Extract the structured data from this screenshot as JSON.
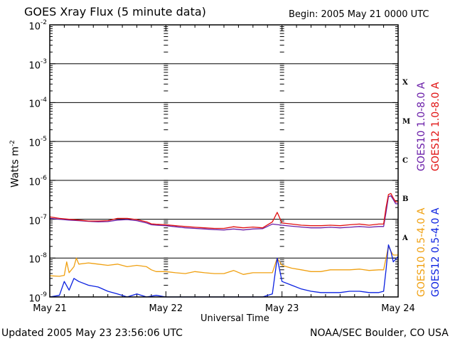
{
  "chart_data": {
    "type": "line",
    "title": "GOES Xray Flux (5 minute data)",
    "begin": "Begin:  2005 May 21 0000 UTC",
    "xlabel": "Universal Time",
    "ylabel": "Watts m",
    "ylabel_exp": "-2",
    "y_scale": "log",
    "ylim": [
      1e-09,
      0.01
    ],
    "x_range_hours": [
      0,
      72
    ],
    "x_tick_labels": [
      "May 21",
      "May 22",
      "May 23",
      "May 24"
    ],
    "y_tick_labels": [
      {
        "base": "10",
        "exp": "-2"
      },
      {
        "base": "10",
        "exp": "-3"
      },
      {
        "base": "10",
        "exp": "-4"
      },
      {
        "base": "10",
        "exp": "-5"
      },
      {
        "base": "10",
        "exp": "-6"
      },
      {
        "base": "10",
        "exp": "-7"
      },
      {
        "base": "10",
        "exp": "-8"
      },
      {
        "base": "10",
        "exp": "-9"
      }
    ],
    "flare_classes": [
      "X",
      "M",
      "C",
      "B",
      "A"
    ],
    "grid": true,
    "series": [
      {
        "name": "GOES10 1.0-8.0 A",
        "color": "#6a1ea8",
        "points": [
          [
            0,
            1.05e-07
          ],
          [
            2,
            1e-07
          ],
          [
            4,
            9.5e-08
          ],
          [
            6,
            9.2e-08
          ],
          [
            8,
            8.8e-08
          ],
          [
            10,
            8.6e-08
          ],
          [
            12,
            8.7e-08
          ],
          [
            14,
            9.5e-08
          ],
          [
            16,
            9.8e-08
          ],
          [
            18,
            9.2e-08
          ],
          [
            20,
            8e-08
          ],
          [
            21,
            7.2e-08
          ],
          [
            22,
            7e-08
          ],
          [
            24,
            6.8e-08
          ],
          [
            26,
            6.4e-08
          ],
          [
            28,
            6e-08
          ],
          [
            30,
            5.8e-08
          ],
          [
            32,
            5.6e-08
          ],
          [
            34,
            5.4e-08
          ],
          [
            36,
            5.3e-08
          ],
          [
            38,
            5.6e-08
          ],
          [
            40,
            5.3e-08
          ],
          [
            42,
            5.6e-08
          ],
          [
            44,
            5.7e-08
          ],
          [
            46,
            7.5e-08
          ],
          [
            48,
            7e-08
          ],
          [
            50,
            6.6e-08
          ],
          [
            52,
            6.3e-08
          ],
          [
            54,
            6e-08
          ],
          [
            56,
            6e-08
          ],
          [
            58,
            6.2e-08
          ],
          [
            60,
            6e-08
          ],
          [
            62,
            6.2e-08
          ],
          [
            64,
            6.5e-08
          ],
          [
            66,
            6.2e-08
          ],
          [
            68,
            6.5e-08
          ],
          [
            69,
            6.5e-08
          ],
          [
            69.5,
            1.5e-07
          ],
          [
            70,
            3.8e-07
          ],
          [
            70.5,
            4e-07
          ],
          [
            71,
            3.2e-07
          ],
          [
            71.5,
            2.5e-07
          ],
          [
            72,
            2.5e-07
          ]
        ]
      },
      {
        "name": "GOES12 1.0-8.0 A",
        "color": "#e01010",
        "points": [
          [
            0,
            1.15e-07
          ],
          [
            2,
            1.05e-07
          ],
          [
            4,
            1e-07
          ],
          [
            6,
            9.5e-08
          ],
          [
            8,
            9e-08
          ],
          [
            10,
            9e-08
          ],
          [
            12,
            9.2e-08
          ],
          [
            14,
            1.05e-07
          ],
          [
            16,
            1.05e-07
          ],
          [
            18,
            9.8e-08
          ],
          [
            20,
            8.6e-08
          ],
          [
            21,
            7.6e-08
          ],
          [
            22,
            7.4e-08
          ],
          [
            24,
            7.2e-08
          ],
          [
            26,
            6.8e-08
          ],
          [
            28,
            6.5e-08
          ],
          [
            30,
            6.2e-08
          ],
          [
            32,
            6e-08
          ],
          [
            34,
            5.8e-08
          ],
          [
            36,
            5.8e-08
          ],
          [
            38,
            6.4e-08
          ],
          [
            40,
            6e-08
          ],
          [
            42,
            6.3e-08
          ],
          [
            44,
            6e-08
          ],
          [
            46,
            8.5e-08
          ],
          [
            47,
            1.5e-07
          ],
          [
            48,
            8e-08
          ],
          [
            50,
            7.5e-08
          ],
          [
            52,
            7e-08
          ],
          [
            54,
            6.8e-08
          ],
          [
            56,
            6.8e-08
          ],
          [
            58,
            7e-08
          ],
          [
            60,
            6.8e-08
          ],
          [
            62,
            7.2e-08
          ],
          [
            64,
            7.5e-08
          ],
          [
            66,
            7e-08
          ],
          [
            68,
            7.5e-08
          ],
          [
            69,
            7.5e-08
          ],
          [
            69.5,
            2e-07
          ],
          [
            70,
            4.3e-07
          ],
          [
            70.5,
            4.6e-07
          ],
          [
            71,
            3.5e-07
          ],
          [
            71.5,
            2.8e-07
          ],
          [
            72,
            2.8e-07
          ]
        ]
      },
      {
        "name": "GOES10 0.5-4.0 A",
        "color": "#f0a010",
        "points": [
          [
            0,
            3.5e-09
          ],
          [
            2,
            3.4e-09
          ],
          [
            3,
            3.6e-09
          ],
          [
            3.5,
            8e-09
          ],
          [
            4,
            4.2e-09
          ],
          [
            5,
            6e-09
          ],
          [
            5.5,
            1e-08
          ],
          [
            6,
            7e-09
          ],
          [
            8,
            7.5e-09
          ],
          [
            10,
            7e-09
          ],
          [
            12,
            6.5e-09
          ],
          [
            14,
            7e-09
          ],
          [
            16,
            6e-09
          ],
          [
            18,
            6.5e-09
          ],
          [
            20,
            6e-09
          ],
          [
            21,
            5e-09
          ],
          [
            22,
            4.5e-09
          ],
          [
            24,
            4.5e-09
          ],
          [
            26,
            4.2e-09
          ],
          [
            28,
            4e-09
          ],
          [
            30,
            4.5e-09
          ],
          [
            32,
            4.2e-09
          ],
          [
            34,
            4e-09
          ],
          [
            36,
            4e-09
          ],
          [
            38,
            4.8e-09
          ],
          [
            40,
            3.8e-09
          ],
          [
            42,
            4.2e-09
          ],
          [
            44,
            4.2e-09
          ],
          [
            46,
            4.2e-09
          ],
          [
            47,
            1e-08
          ],
          [
            48,
            6.5e-09
          ],
          [
            50,
            5.5e-09
          ],
          [
            52,
            5e-09
          ],
          [
            54,
            4.5e-09
          ],
          [
            56,
            4.5e-09
          ],
          [
            58,
            5e-09
          ],
          [
            60,
            5e-09
          ],
          [
            62,
            5e-09
          ],
          [
            64,
            5.2e-09
          ],
          [
            66,
            4.8e-09
          ],
          [
            68,
            5e-09
          ],
          [
            69,
            5e-09
          ],
          [
            69.5,
            1e-08
          ],
          [
            70,
            2e-08
          ],
          [
            70.5,
            1.5e-08
          ],
          [
            71,
            1.2e-08
          ],
          [
            72,
            1.2e-08
          ]
        ]
      },
      {
        "name": "GOES12 0.5-4.0 A",
        "color": "#0a20e0",
        "points": [
          [
            0,
            1e-09
          ],
          [
            2,
            1.1e-09
          ],
          [
            3,
            2.5e-09
          ],
          [
            4,
            1.5e-09
          ],
          [
            5,
            3e-09
          ],
          [
            6,
            2.5e-09
          ],
          [
            8,
            2e-09
          ],
          [
            10,
            1.8e-09
          ],
          [
            12,
            1.4e-09
          ],
          [
            14,
            1.2e-09
          ],
          [
            16,
            1e-09
          ],
          [
            18,
            1.2e-09
          ],
          [
            20,
            1e-09
          ],
          [
            22,
            1.1e-09
          ],
          [
            24,
            1e-09
          ],
          [
            26,
            1e-09
          ],
          [
            28,
            1e-09
          ],
          [
            30,
            1e-09
          ],
          [
            32,
            1e-09
          ],
          [
            34,
            1e-09
          ],
          [
            36,
            1e-09
          ],
          [
            38,
            1e-09
          ],
          [
            40,
            1e-09
          ],
          [
            42,
            1e-09
          ],
          [
            44,
            1e-09
          ],
          [
            46,
            1.2e-09
          ],
          [
            47,
            1e-08
          ],
          [
            48,
            2.5e-09
          ],
          [
            50,
            2e-09
          ],
          [
            52,
            1.6e-09
          ],
          [
            54,
            1.4e-09
          ],
          [
            56,
            1.3e-09
          ],
          [
            58,
            1.3e-09
          ],
          [
            60,
            1.3e-09
          ],
          [
            62,
            1.4e-09
          ],
          [
            64,
            1.4e-09
          ],
          [
            66,
            1.3e-09
          ],
          [
            68,
            1.3e-09
          ],
          [
            69,
            1.4e-09
          ],
          [
            69.5,
            5e-09
          ],
          [
            70,
            2.2e-08
          ],
          [
            70.5,
            1.5e-08
          ],
          [
            71,
            8e-09
          ],
          [
            72,
            1.1e-08
          ]
        ]
      }
    ]
  },
  "footer": {
    "updated": "Updated 2005 May 23 23:56:06 UTC",
    "credit": "NOAA/SEC Boulder, CO USA"
  }
}
